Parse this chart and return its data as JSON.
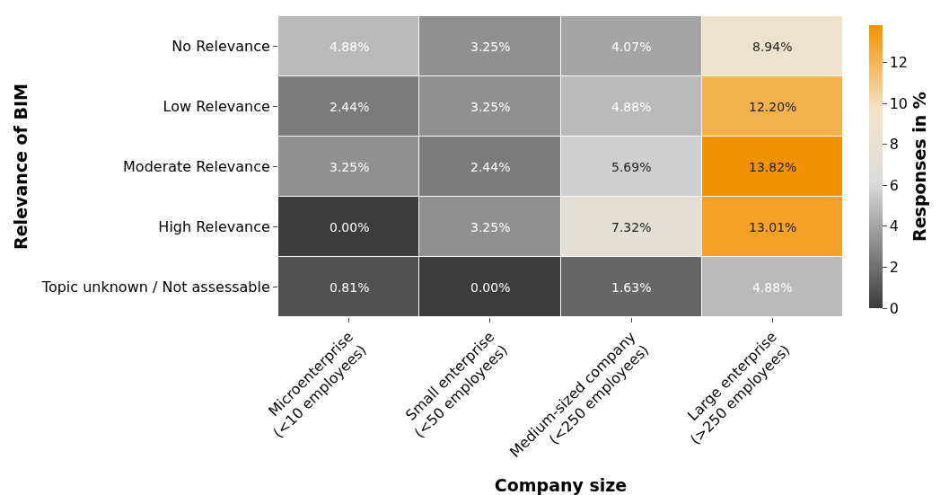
{
  "chart_data": {
    "type": "heatmap",
    "xlabel": "Company size",
    "ylabel": "Relevance of BIM",
    "clabel": "Responses in %",
    "categories": [
      "Microenterprise\n(<10 employees)",
      "Small enterprise\n(<50 employees)",
      "Medium-sized company\n(<250 employees)",
      "Large enterprise\n(>250 employees)"
    ],
    "y_categories": [
      "No Relevance",
      "Low Relevance",
      "Moderate Relevance",
      "High Relevance",
      "Topic unknown / Not assessable"
    ],
    "cells": [
      [
        4.88,
        3.25,
        4.07,
        8.94
      ],
      [
        2.44,
        3.25,
        4.88,
        12.2
      ],
      [
        3.25,
        2.44,
        5.69,
        13.82
      ],
      [
        0.0,
        3.25,
        7.32,
        13.01
      ],
      [
        0.81,
        0.0,
        1.63,
        4.88
      ]
    ],
    "cell_labels": [
      [
        "4.88%",
        "3.25%",
        "4.07%",
        "8.94%"
      ],
      [
        "2.44%",
        "3.25%",
        "4.88%",
        "12.20%"
      ],
      [
        "3.25%",
        "2.44%",
        "5.69%",
        "13.82%"
      ],
      [
        "0.00%",
        "3.25%",
        "7.32%",
        "13.01%"
      ],
      [
        "0.81%",
        "0.00%",
        "1.63%",
        "4.88%"
      ]
    ],
    "clim": [
      0,
      13.82
    ],
    "cticks": [
      0,
      2,
      4,
      6,
      8,
      10,
      12
    ]
  }
}
